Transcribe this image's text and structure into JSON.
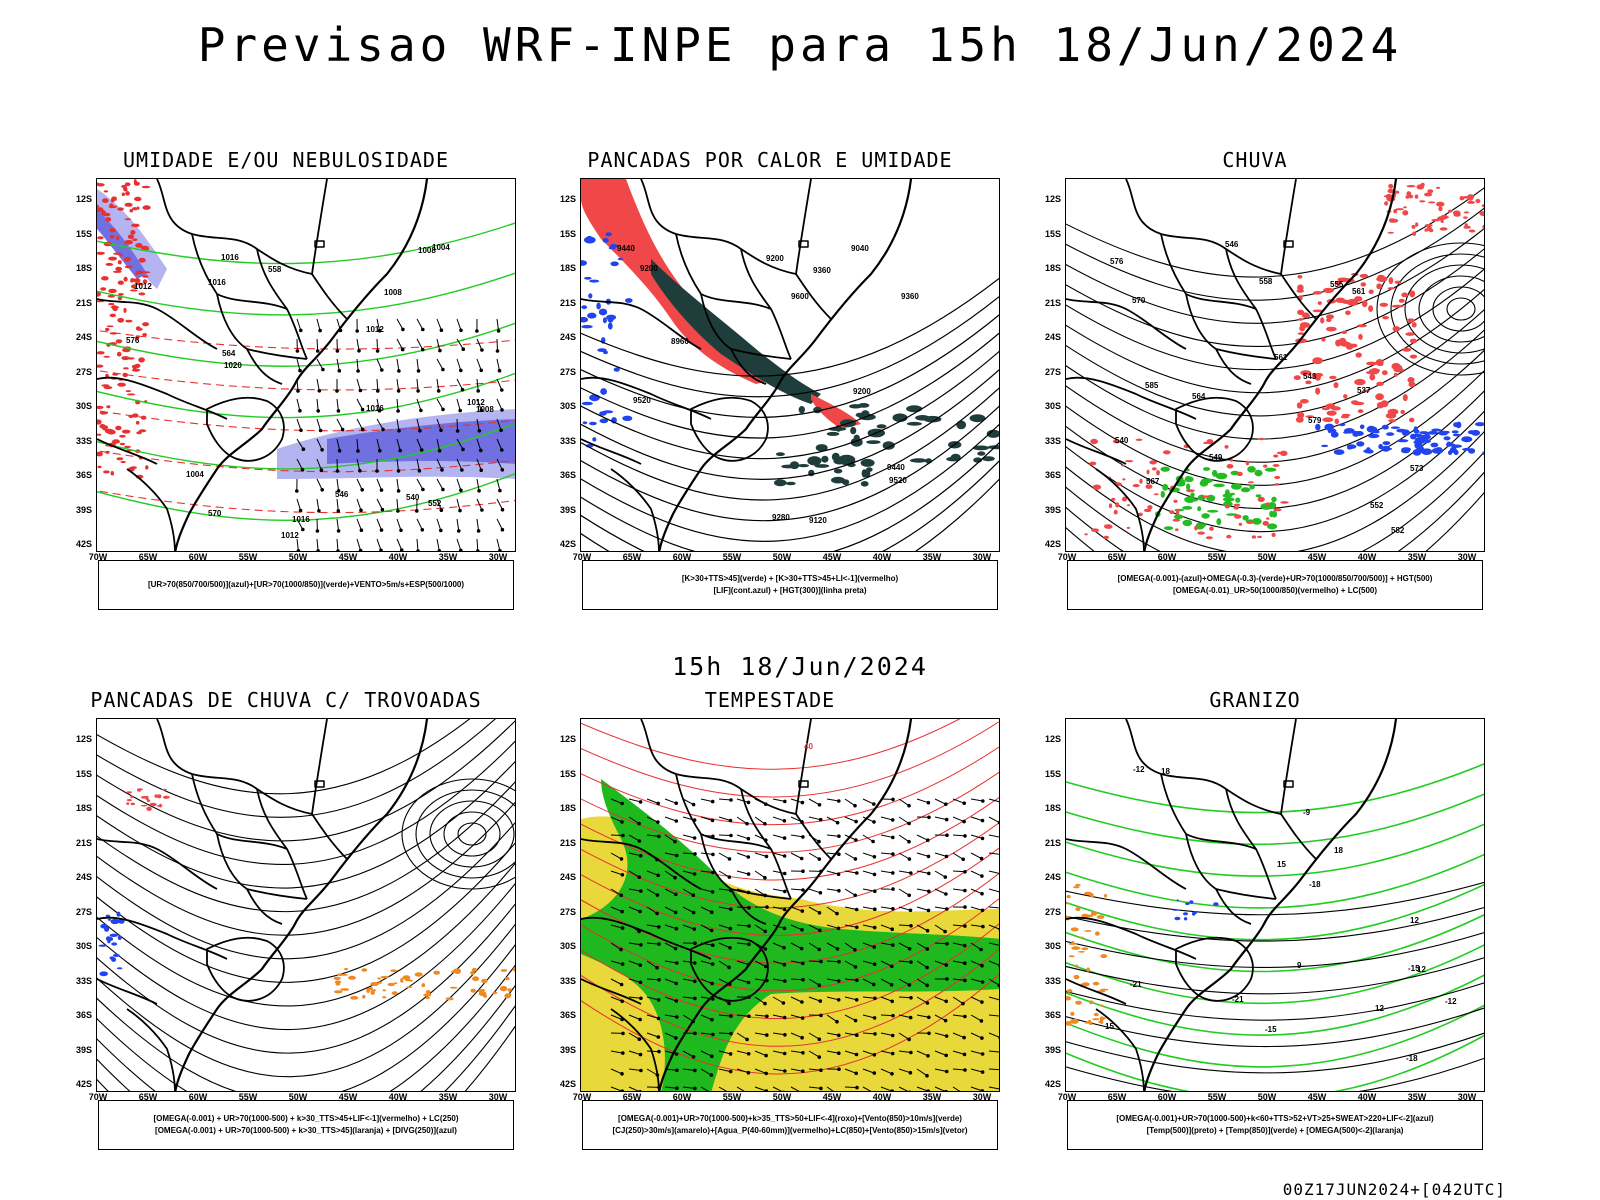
{
  "header": {
    "title": "Previsao WRF-INPE  para 15h 18/Jun/2024",
    "mid_time": "15h 18/Jun/2024",
    "run_info": "00Z17JUN2024+[042UTC]"
  },
  "axes": {
    "lat_ticks": [
      "12S",
      "15S",
      "18S",
      "21S",
      "24S",
      "27S",
      "30S",
      "33S",
      "36S",
      "39S",
      "42S"
    ],
    "lon_ticks": [
      "70W",
      "65W",
      "60W",
      "55W",
      "50W",
      "45W",
      "40W",
      "35W",
      "30W"
    ]
  },
  "colors": {
    "border": "#000000",
    "humidity_blue": "#7070e0",
    "humidity_lavender": "#b4b4f0",
    "green_contour": "#22cc22",
    "red_dash": "#e83030",
    "dark_teal": "#1f3d3a",
    "red_fill": "#f04848",
    "blue_fill": "#2244ee",
    "green_fill": "#22bb22",
    "orange_fill": "#f08a20",
    "yellow_fill": "#e8d83a",
    "storm_green": "#1fb81f"
  },
  "panels": [
    {
      "id": "umidade",
      "title": "UMIDADE E/OU NEBULOSIDADE",
      "legend_lines": [
        "[UR>70(850/700/500)](azul)+[UR>70(1000/850)](verde)+VENTO>5m/s+ESP(500/1000)"
      ],
      "contour_labels": [
        "1012",
        "1016",
        "1012",
        "1016",
        "1008",
        "1012",
        "1016",
        "1020",
        "1004",
        "1008",
        "1012",
        "1016",
        "1008",
        "1004",
        "576",
        "570",
        "564",
        "558",
        "552",
        "546",
        "540"
      ]
    },
    {
      "id": "pancadas_calor",
      "title": "PANCADAS POR CALOR E UMIDADE",
      "legend_lines": [
        "[K>30+TTS>45](verde) + [K>30+TTS>45+LI<-1](vermelho)",
        "[LIF](cont.azul) + [HGT(300)](linha preta)"
      ],
      "contour_labels": [
        "9600",
        "9520",
        "9440",
        "9360",
        "9280",
        "9200",
        "9120",
        "9040",
        "8960",
        "9520",
        "9440",
        "9360",
        "9200",
        "9200"
      ]
    },
    {
      "id": "chuva",
      "title": "CHUVA",
      "legend_lines": [
        "[OMEGA(-0.001)-(azul)+OMEGA(-0.3)-(verde)+UR>70(1000/850/700/500)] + HGT(500)",
        "[OMEGA(-0.01)_UR>50(1000/850)(vermelho) + LC(500)"
      ],
      "contour_labels": [
        "582",
        "585",
        "579",
        "576",
        "573",
        "570",
        "567",
        "564",
        "561",
        "558",
        "555",
        "552",
        "549",
        "546",
        "543",
        "540",
        "537",
        "561"
      ]
    },
    {
      "id": "trovoadas",
      "title": "PANCADAS DE CHUVA C/ TROVOADAS",
      "legend_lines": [
        "[OMEGA(-0.001) + UR>70(1000-500) + k>30_TTS>45+LIF<-1](vermelho) + LC(250)",
        "[OMEGA(-0.001) + UR>70(1000-500) + k>30_TTS>45](laranja) + [DIVG(250)](azul)"
      ],
      "contour_labels": []
    },
    {
      "id": "tempestade",
      "title": "TEMPESTADE",
      "legend_lines": [
        "[OMEGA(-0.001)+UR>70(1000-500)+k>35_TTS>50+LIF<-4](roxo)+[Vento(850)>10m/s](verde)",
        "[CJ(250)>30m/s](amarelo)+[Agua_P(40-60mm)](vermelho)+LC(850)+[Vento(850)>15m/s](vetor)"
      ],
      "contour_labels": [
        "40"
      ]
    },
    {
      "id": "granizo",
      "title": "GRANIZO",
      "legend_lines": [
        "[OMEGA(-0.001)+UR>70(1000-500)+k<60+TTS>52+VT>25+SWEAT>220+LIF<-2](azul)",
        "[Temp(500)](preto) + [Temp(850)](verde) + [OMEGA(500)<-2](laranja)"
      ],
      "contour_labels": [
        "-21",
        "-18",
        "-15",
        "-12",
        "-9",
        "12",
        "15",
        "18",
        "12",
        "15",
        "18",
        "9",
        "12",
        "-15",
        "-12",
        "-21",
        "-18"
      ]
    }
  ]
}
